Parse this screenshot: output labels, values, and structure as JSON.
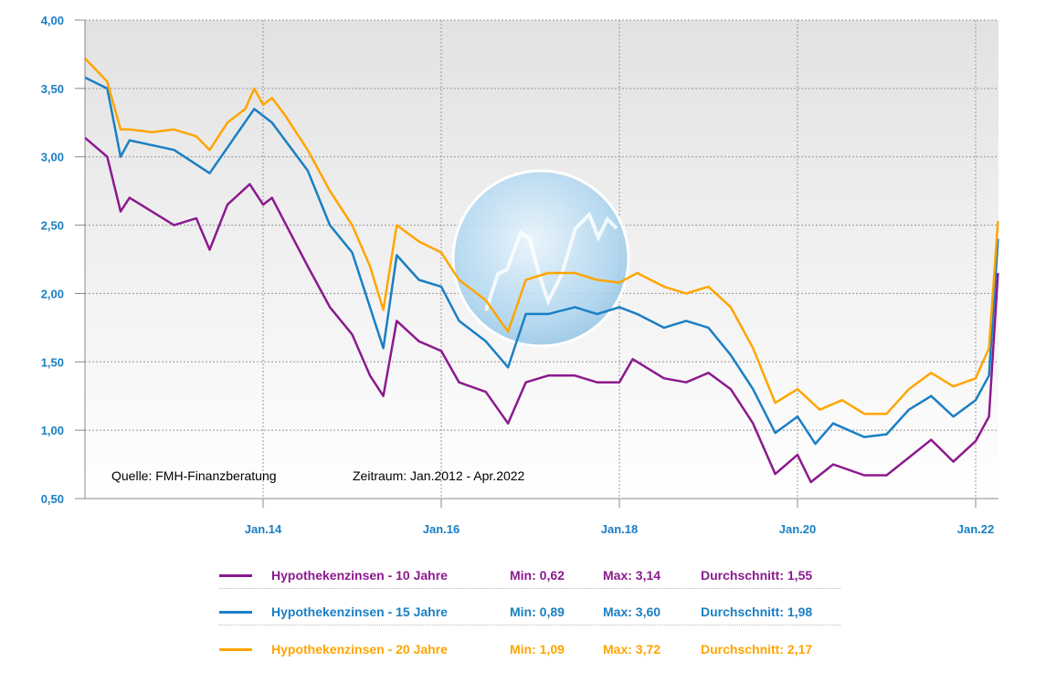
{
  "chart_data": {
    "type": "line",
    "title": "",
    "xlabel": "",
    "ylabel": "",
    "ylim": [
      0.5,
      4.0
    ],
    "xlim": [
      2012.0,
      2022.25
    ],
    "y_ticks": [
      "4,00",
      "3,50",
      "3,00",
      "2,50",
      "2,00",
      "1,50",
      "1,00",
      "0,50"
    ],
    "y_tick_values": [
      4.0,
      3.5,
      3.0,
      2.5,
      2.0,
      1.5,
      1.0,
      0.5
    ],
    "x_ticks": [
      "Jan.14",
      "Jan.16",
      "Jan.18",
      "Jan.20",
      "Jan.22"
    ],
    "x_tick_values": [
      2014,
      2016,
      2018,
      2020,
      2022
    ],
    "grid": true,
    "annotations": {
      "source": "Quelle: FMH-Finanzberatung",
      "period": "Zeitraum: Jan.2012 - Apr.2022"
    },
    "series": [
      {
        "name": "Hypothekenzinsen - 10 Jahre",
        "color": "#8b1a8e",
        "min": "Min: 0,62",
        "max": "Max: 3,14",
        "avg": "Durchschnitt: 1,55",
        "x": [
          2012.0,
          2012.25,
          2012.4,
          2012.5,
          2013.0,
          2013.25,
          2013.4,
          2013.6,
          2013.85,
          2014.0,
          2014.1,
          2014.3,
          2014.5,
          2014.75,
          2015.0,
          2015.2,
          2015.35,
          2015.5,
          2015.75,
          2016.0,
          2016.2,
          2016.5,
          2016.75,
          2016.95,
          2017.2,
          2017.5,
          2017.75,
          2018.0,
          2018.15,
          2018.5,
          2018.75,
          2019.0,
          2019.25,
          2019.5,
          2019.75,
          2020.0,
          2020.15,
          2020.4,
          2020.75,
          2021.0,
          2021.25,
          2021.5,
          2021.75,
          2022.0,
          2022.15,
          2022.25
        ],
        "y": [
          3.14,
          3.0,
          2.6,
          2.7,
          2.5,
          2.55,
          2.32,
          2.65,
          2.8,
          2.65,
          2.7,
          2.45,
          2.2,
          1.9,
          1.7,
          1.4,
          1.25,
          1.8,
          1.65,
          1.58,
          1.35,
          1.28,
          1.05,
          1.35,
          1.4,
          1.4,
          1.35,
          1.35,
          1.52,
          1.38,
          1.35,
          1.42,
          1.3,
          1.05,
          0.68,
          0.82,
          0.62,
          0.75,
          0.67,
          0.67,
          0.8,
          0.93,
          0.77,
          0.92,
          1.1,
          2.15
        ]
      },
      {
        "name": "Hypothekenzinsen - 15 Jahre",
        "color": "#1a7fc4",
        "min": "Min: 0,89",
        "max": "Max: 3,60",
        "avg": "Durchschnitt: 1,98",
        "x": [
          2012.0,
          2012.25,
          2012.4,
          2012.5,
          2013.0,
          2013.4,
          2013.9,
          2014.1,
          2014.5,
          2014.75,
          2015.0,
          2015.35,
          2015.5,
          2015.75,
          2016.0,
          2016.2,
          2016.5,
          2016.75,
          2016.95,
          2017.2,
          2017.5,
          2017.75,
          2018.0,
          2018.2,
          2018.5,
          2018.75,
          2019.0,
          2019.25,
          2019.5,
          2019.75,
          2020.0,
          2020.2,
          2020.4,
          2020.75,
          2021.0,
          2021.25,
          2021.5,
          2021.75,
          2022.0,
          2022.15,
          2022.25
        ],
        "y": [
          3.58,
          3.5,
          3.0,
          3.12,
          3.05,
          2.88,
          3.35,
          3.25,
          2.9,
          2.5,
          2.3,
          1.6,
          2.28,
          2.1,
          2.05,
          1.8,
          1.65,
          1.46,
          1.85,
          1.85,
          1.9,
          1.85,
          1.9,
          1.85,
          1.75,
          1.8,
          1.75,
          1.55,
          1.3,
          0.98,
          1.1,
          0.9,
          1.05,
          0.95,
          0.97,
          1.15,
          1.25,
          1.1,
          1.22,
          1.4,
          2.4
        ]
      },
      {
        "name": "Hypothekenzinsen - 20 Jahre",
        "color": "#ffa500",
        "min": "Min: 1,09",
        "max": "Max: 3,72",
        "avg": "Durchschnitt: 2,17",
        "x": [
          2012.0,
          2012.25,
          2012.4,
          2012.5,
          2012.75,
          2013.0,
          2013.25,
          2013.4,
          2013.6,
          2013.8,
          2013.9,
          2014.0,
          2014.1,
          2014.25,
          2014.5,
          2014.75,
          2015.0,
          2015.2,
          2015.35,
          2015.5,
          2015.75,
          2016.0,
          2016.2,
          2016.5,
          2016.75,
          2016.95,
          2017.2,
          2017.5,
          2017.75,
          2018.0,
          2018.2,
          2018.5,
          2018.75,
          2019.0,
          2019.25,
          2019.5,
          2019.75,
          2020.0,
          2020.25,
          2020.5,
          2020.75,
          2021.0,
          2021.25,
          2021.5,
          2021.75,
          2022.0,
          2022.15,
          2022.25
        ],
        "y": [
          3.72,
          3.55,
          3.2,
          3.2,
          3.18,
          3.2,
          3.15,
          3.05,
          3.25,
          3.35,
          3.5,
          3.38,
          3.43,
          3.3,
          3.05,
          2.75,
          2.5,
          2.2,
          1.88,
          2.5,
          2.38,
          2.3,
          2.1,
          1.95,
          1.72,
          2.1,
          2.15,
          2.15,
          2.1,
          2.08,
          2.15,
          2.05,
          2.0,
          2.05,
          1.9,
          1.6,
          1.2,
          1.3,
          1.15,
          1.22,
          1.12,
          1.12,
          1.3,
          1.42,
          1.32,
          1.38,
          1.6,
          2.53
        ]
      }
    ]
  }
}
